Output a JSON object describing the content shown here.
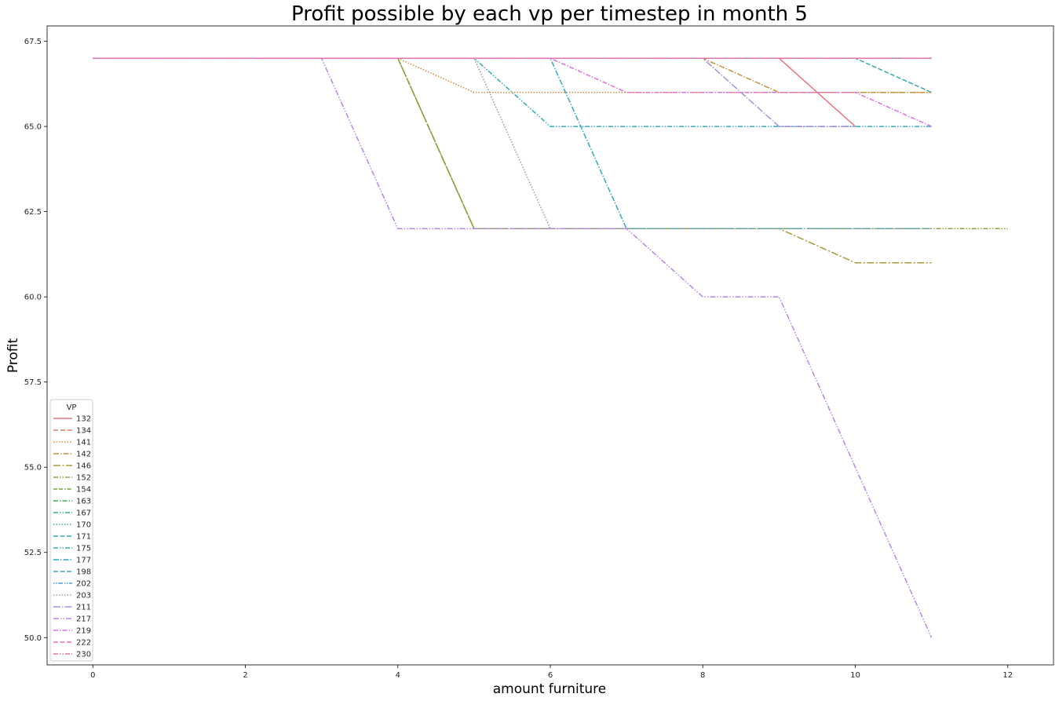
{
  "chart_data": {
    "type": "line",
    "title": "Profit possible by each vp per timestep in month 5",
    "xlabel": "amount furniture",
    "ylabel": "Profit",
    "xlim": [
      -0.6,
      12.6
    ],
    "ylim": [
      49.2,
      67.95
    ],
    "xticks": [
      0,
      2,
      4,
      6,
      8,
      10,
      12
    ],
    "xtick_labels": [
      "0",
      "2",
      "4",
      "6",
      "8",
      "10",
      "12"
    ],
    "yticks": [
      50,
      52.5,
      55,
      57.5,
      60,
      62.5,
      65,
      67.5
    ],
    "ytick_labels": [
      "50.0",
      "52.5",
      "55.0",
      "57.5",
      "60.0",
      "62.5",
      "65.0",
      "67.5"
    ],
    "grid": false,
    "legend": {
      "title": "VP",
      "position": "lower-left"
    },
    "series": [
      {
        "name": "132",
        "color": "#e8747f",
        "dash": "",
        "x": [
          0,
          1,
          2,
          3,
          4,
          5,
          6,
          7,
          8,
          9,
          10
        ],
        "y": [
          67,
          67,
          67,
          67,
          67,
          67,
          67,
          67,
          67,
          67,
          65
        ]
      },
      {
        "name": "134",
        "color": "#e67d5f",
        "dash": "6,3",
        "x": [
          0,
          1,
          2,
          3,
          4,
          5,
          6,
          7,
          8,
          9,
          10,
          11
        ],
        "y": [
          67,
          67,
          67,
          67,
          67,
          67,
          67,
          67,
          67,
          67,
          67,
          67
        ]
      },
      {
        "name": "141",
        "color": "#d48b3e",
        "dash": "1.5,2",
        "x": [
          0,
          1,
          2,
          3,
          4,
          5,
          6,
          7,
          8,
          9,
          10,
          11
        ],
        "y": [
          67,
          67,
          67,
          67,
          67,
          66,
          66,
          66,
          66,
          66,
          66,
          66
        ]
      },
      {
        "name": "142",
        "color": "#c4923a",
        "dash": "7,2,1.5,2",
        "x": [
          0,
          1,
          2,
          3,
          4,
          5,
          6,
          7,
          8,
          9,
          10,
          11
        ],
        "y": [
          67,
          67,
          67,
          67,
          67,
          67,
          67,
          67,
          67,
          66,
          66,
          66
        ]
      },
      {
        "name": "146",
        "color": "#a89a39",
        "dash": "9,2.5,2,2.5",
        "x": [
          0,
          1,
          2,
          3,
          4,
          5,
          6,
          7,
          8,
          9,
          10,
          11
        ],
        "y": [
          67,
          67,
          67,
          67,
          67,
          62,
          62,
          62,
          62,
          62,
          61,
          61
        ]
      },
      {
        "name": "152",
        "color": "#999d3b",
        "dash": "6,2,1.5,2,1.5,2",
        "x": [
          0,
          1,
          2,
          3,
          4,
          5,
          6,
          7,
          8,
          9,
          10,
          11,
          12
        ],
        "y": [
          67,
          67,
          67,
          67,
          67,
          62,
          62,
          62,
          62,
          62,
          62,
          62,
          62
        ]
      },
      {
        "name": "154",
        "color": "#79a53a",
        "dash": "5,2,5,2,1.5,2",
        "x": [
          0,
          1,
          2,
          3,
          4,
          5,
          6,
          7,
          8,
          9,
          10,
          11
        ],
        "y": [
          67,
          67,
          67,
          67,
          67,
          62,
          62,
          62,
          62,
          62,
          62,
          62
        ]
      },
      {
        "name": "163",
        "color": "#3fad51",
        "dash": "6,2,1.5,2",
        "x": [
          0,
          1,
          2,
          3,
          4,
          5,
          6,
          7,
          8,
          9,
          10,
          11
        ],
        "y": [
          67,
          67,
          67,
          67,
          67,
          67,
          67,
          67,
          67,
          67,
          67,
          67
        ]
      },
      {
        "name": "167",
        "color": "#36ad8a",
        "dash": "6,2,1.5,2,1.5,2",
        "x": [
          0,
          1,
          2,
          3,
          4,
          5,
          6,
          7,
          8,
          9,
          10,
          11
        ],
        "y": [
          67,
          67,
          67,
          67,
          67,
          67,
          67,
          67,
          67,
          67,
          67,
          67
        ]
      },
      {
        "name": "170",
        "color": "#35ab9e",
        "dash": "1.5,2",
        "x": [
          0,
          1,
          2,
          3,
          4,
          5,
          6,
          7,
          8,
          9,
          10,
          11
        ],
        "y": [
          67,
          67,
          67,
          67,
          67,
          67,
          67,
          67,
          67,
          67,
          67,
          67
        ]
      },
      {
        "name": "171",
        "color": "#36aab0",
        "dash": "6,2.5",
        "x": [
          0,
          1,
          2,
          3,
          4,
          5,
          6,
          7,
          8,
          9,
          10,
          11
        ],
        "y": [
          67,
          67,
          67,
          67,
          67,
          67,
          67,
          67,
          67,
          67,
          67,
          66
        ]
      },
      {
        "name": "175",
        "color": "#33aab8",
        "dash": "6,2,1.5,2,1.5,2",
        "x": [
          0,
          1,
          2,
          3,
          4,
          5,
          6,
          7,
          8,
          9,
          10,
          11
        ],
        "y": [
          67,
          67,
          67,
          67,
          67,
          67,
          65,
          65,
          65,
          65,
          65,
          65
        ]
      },
      {
        "name": "177",
        "color": "#32a9c2",
        "dash": "7,2,1.5,2",
        "x": [
          0,
          1,
          2,
          3,
          4,
          5,
          6,
          7,
          8,
          9,
          10,
          11
        ],
        "y": [
          67,
          67,
          67,
          67,
          67,
          67,
          67,
          62,
          62,
          62,
          62,
          62
        ]
      },
      {
        "name": "198",
        "color": "#38a6d2",
        "dash": "6,2.5",
        "x": [
          0,
          1,
          2,
          3,
          4,
          5,
          6,
          7,
          8,
          9,
          10,
          11
        ],
        "y": [
          67,
          67,
          67,
          67,
          67,
          67,
          67,
          67,
          67,
          67,
          67,
          67
        ]
      },
      {
        "name": "202",
        "color": "#4aa0e0",
        "dash": "1.5,1.5,1.5,1.5,6,2",
        "x": [
          0,
          1,
          2,
          3,
          4,
          5,
          6,
          7,
          8,
          9,
          10,
          11
        ],
        "y": [
          67,
          67,
          67,
          67,
          67,
          67,
          67,
          67,
          67,
          67,
          67,
          67
        ]
      },
      {
        "name": "203",
        "color": "#9a9a9a",
        "dash": "1.5,2",
        "x": [
          0,
          1,
          2,
          3,
          4,
          5,
          6,
          7,
          8,
          9,
          10,
          11
        ],
        "y": [
          67,
          67,
          67,
          67,
          67,
          67,
          62,
          62,
          62,
          62,
          62,
          62
        ]
      },
      {
        "name": "211",
        "color": "#a88fd9",
        "dash": "9,2,1.5,2",
        "x": [
          0,
          1,
          2,
          3,
          4,
          5,
          6,
          7,
          8,
          9,
          10
        ],
        "y": [
          67,
          67,
          67,
          67,
          67,
          67,
          67,
          67,
          67,
          65,
          65
        ]
      },
      {
        "name": "217",
        "color": "#b986e8",
        "dash": "7,2,1.5,2,1.5,2",
        "x": [
          0,
          1,
          2,
          3,
          4,
          5,
          6,
          7,
          8,
          9,
          10,
          11
        ],
        "y": [
          67,
          67,
          67,
          67,
          62,
          62,
          62,
          62,
          60,
          60,
          55,
          50
        ]
      },
      {
        "name": "219",
        "color": "#df70e0",
        "dash": "6,2,1.5,2",
        "x": [
          0,
          1,
          2,
          3,
          4,
          5,
          6,
          7,
          8,
          9,
          10,
          11
        ],
        "y": [
          67,
          67,
          67,
          67,
          67,
          67,
          67,
          66,
          66,
          66,
          66,
          65
        ]
      },
      {
        "name": "222",
        "color": "#e870c6",
        "dash": "6,2.5",
        "x": [
          0,
          1,
          2,
          3,
          4,
          5,
          6,
          7,
          8,
          9,
          10,
          11
        ],
        "y": [
          67,
          67,
          67,
          67,
          67,
          67,
          67,
          67,
          67,
          67,
          67,
          67
        ]
      },
      {
        "name": "230",
        "color": "#ea72a6",
        "dash": "6,2,1.5,2,1.5,2",
        "x": [
          0,
          1,
          2,
          3,
          4,
          5,
          6,
          7,
          8,
          9,
          10,
          11
        ],
        "y": [
          67,
          67,
          67,
          67,
          67,
          67,
          67,
          67,
          67,
          67,
          67,
          67
        ]
      }
    ]
  }
}
